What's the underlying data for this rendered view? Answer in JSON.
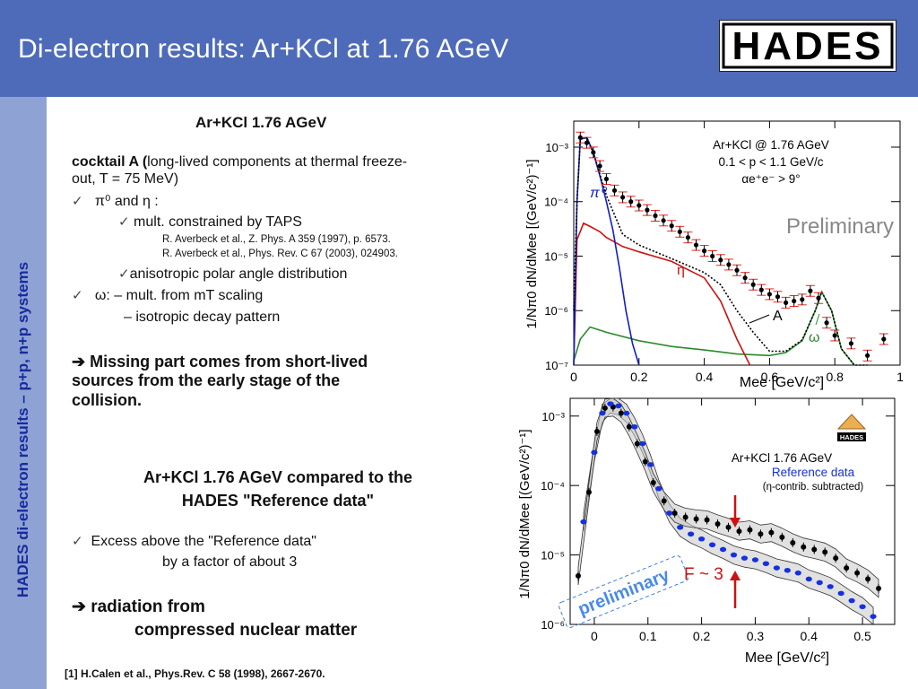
{
  "header": {
    "title": "Di-electron results: Ar+KCl at 1.76 AGeV",
    "logo_text": "HADES",
    "logo_colors": {
      "bg": "#ffffff",
      "fg": "#000000"
    }
  },
  "sidebar": {
    "text": "HADES di-electron results – p+p, n+p systems"
  },
  "left": {
    "section1_title": "Ar+KCl 1.76 AGeV",
    "cocktail_bold": "cocktail A (",
    "cocktail_rest": "long-lived components at thermal freeze-",
    "cocktail_line2": "out, T = 75 MeV)",
    "item_pi_eta": "π⁰ and η :",
    "sub_taps": "mult. constrained by TAPS",
    "ref1": "R. Averbeck  et  al., Z. Phys. A 359 (1997), p. 6573.",
    "ref2": "R. Averbeck  et  al., Phys. Rev. C 67 (2003), 024903.",
    "sub_aniso": "anisotropic polar angle distribution",
    "item_omega": "ω:  – mult. from mT scaling",
    "omega_line2": "– isotropic decay pattern",
    "missing_line1": "➔ Missing part comes from short-lived",
    "missing_line2": "sources from the early stage of the",
    "missing_line3": "collision.",
    "section2_title_l1": "Ar+KCl 1.76 AGeV compared to the",
    "section2_title_l2": "HADES \"Reference data\"",
    "excess_l1": "Excess above the \"Reference data\"",
    "excess_l2": "by a factor of about 3",
    "radiation_l1": "➔ radiation from",
    "radiation_l2": "compressed nuclear matter",
    "footnote": "[1] H.Calen et al., Phys.Rev. C 58 (1998), 2667-2670."
  },
  "chart_data": [
    {
      "type": "line",
      "title": "Ar+KCl @ 1.76 AGeV",
      "subtitle_lines": [
        "0.1 < p < 1.1 GeV/c",
        "αe⁺e⁻ > 9°"
      ],
      "xlabel": "Mee [GeV/c²]",
      "ylabel": "1/Nπ0 dN/dMee  [(GeV/c²)⁻¹]",
      "x_ticks": [
        "0",
        "0.2",
        "0.4",
        "0.6",
        "0.8",
        "1"
      ],
      "y_ticks": [
        "10⁻⁷",
        "10⁻⁶",
        "10⁻⁵",
        "10⁻⁴",
        "10⁻³"
      ],
      "xlim": [
        0,
        1.0
      ],
      "ylog": true,
      "ylim": [
        1e-07,
        0.003
      ],
      "watermark": "Preliminary",
      "labels": {
        "pi0": "π⁰",
        "eta": "η",
        "A": "A",
        "omega": "ω"
      },
      "colors": {
        "pi0": "#1020c0",
        "eta": "#cc1111",
        "omega": "#2a8a2a",
        "data": "#000000",
        "err": "#ee2222"
      },
      "series": [
        {
          "name": "data",
          "x": [
            0.02,
            0.04,
            0.06,
            0.08,
            0.1,
            0.125,
            0.15,
            0.175,
            0.2,
            0.225,
            0.25,
            0.275,
            0.3,
            0.325,
            0.35,
            0.375,
            0.4,
            0.425,
            0.45,
            0.475,
            0.5,
            0.525,
            0.55,
            0.575,
            0.6,
            0.625,
            0.65,
            0.675,
            0.7,
            0.725,
            0.75,
            0.775,
            0.8,
            0.85,
            0.9,
            0.95
          ],
          "y": [
            0.0015,
            0.0012,
            0.0008,
            0.00045,
            0.00026,
            0.00016,
            0.00012,
            0.0001,
            8.5e-05,
            7e-05,
            5.5e-05,
            4.5e-05,
            3.6e-05,
            2.8e-05,
            2.2e-05,
            1.6e-05,
            1.25e-05,
            1e-05,
            8.5e-06,
            7e-06,
            5.5e-06,
            4e-06,
            3e-06,
            2.4e-06,
            2e-06,
            1.8e-06,
            1.4e-06,
            1.5e-06,
            1.6e-06,
            2.3e-06,
            1.7e-06,
            6e-07,
            3.5e-07,
            2.5e-07,
            1.5e-07,
            3e-07
          ]
        },
        {
          "name": "π⁰",
          "x": [
            0,
            0.01,
            0.02,
            0.04,
            0.06,
            0.08,
            0.1,
            0.12,
            0.14,
            0.16,
            0.18,
            0.2
          ],
          "y": [
            1e-07,
            0.0001,
            0.0014,
            0.0015,
            0.0008,
            0.0003,
            0.0001,
            3e-05,
            6e-06,
            1e-06,
            2.5e-07,
            1e-07
          ]
        },
        {
          "name": "η",
          "x": [
            0,
            0.01,
            0.03,
            0.05,
            0.08,
            0.1,
            0.15,
            0.2,
            0.3,
            0.4,
            0.45,
            0.5,
            0.54
          ],
          "y": [
            1e-07,
            2e-05,
            4e-05,
            3.5e-05,
            2.8e-05,
            2.2e-05,
            1.5e-05,
            1.2e-05,
            8e-06,
            4e-06,
            1.5e-06,
            3e-07,
            1e-07
          ]
        },
        {
          "name": "ω",
          "x": [
            0,
            0.02,
            0.05,
            0.1,
            0.2,
            0.3,
            0.4,
            0.5,
            0.6,
            0.65,
            0.7,
            0.74,
            0.76,
            0.79,
            0.82,
            0.86
          ],
          "y": [
            1.2e-07,
            3e-07,
            5e-07,
            4e-07,
            2.8e-07,
            2.2e-07,
            1.9e-07,
            1.6e-07,
            1.5e-07,
            1.7e-07,
            2.8e-07,
            1e-06,
            2.2e-06,
            1e-06,
            2e-07,
            1e-07
          ]
        },
        {
          "name": "A",
          "x": [
            0,
            0.01,
            0.02,
            0.04,
            0.06,
            0.08,
            0.1,
            0.15,
            0.2,
            0.3,
            0.4,
            0.45,
            0.5,
            0.55,
            0.6,
            0.65,
            0.7,
            0.74,
            0.76,
            0.79,
            0.82,
            0.86,
            0.9
          ],
          "y": [
            1e-06,
            0.0001,
            0.0014,
            0.0015,
            0.0008,
            0.00032,
            0.00013,
            2.5e-05,
            1.6e-05,
            9e-06,
            5e-06,
            3e-06,
            1e-06,
            4e-07,
            1.8e-07,
            1.8e-07,
            2.9e-07,
            1e-06,
            2.2e-06,
            1e-06,
            2e-07,
            1e-07,
            1e-07
          ]
        }
      ]
    },
    {
      "type": "line",
      "title": "Ar+KCl 1.76 AGeV",
      "legend": [
        "Reference data",
        "(η-contrib. subtracted)"
      ],
      "xlabel": "Mee [GeV/c²]",
      "ylabel": "1/Nπ0 dN/dMee  [(GeV/c²)⁻¹]",
      "x_ticks": [
        "0",
        "0.1",
        "0.2",
        "0.3",
        "0.4",
        "0.5"
      ],
      "y_ticks": [
        "10⁻⁶",
        "10⁻⁵",
        "10⁻⁴",
        "10⁻³"
      ],
      "xlim": [
        -0.045,
        0.56
      ],
      "ylog": true,
      "ylim": [
        1e-06,
        0.0018
      ],
      "stamp": "preliminary",
      "annotation": "F ~ 3",
      "colors": {
        "arkcl": "#000000",
        "ref": "#1530e0",
        "arrow": "#cc1111",
        "band": "#c8c8c8"
      },
      "series": [
        {
          "name": "Ar+KCl 1.76 AGeV",
          "x": [
            -0.03,
            -0.01,
            0.005,
            0.02,
            0.035,
            0.05,
            0.065,
            0.08,
            0.095,
            0.11,
            0.13,
            0.15,
            0.17,
            0.19,
            0.21,
            0.23,
            0.25,
            0.27,
            0.29,
            0.31,
            0.33,
            0.35,
            0.37,
            0.39,
            0.41,
            0.43,
            0.45,
            0.47,
            0.49,
            0.51,
            0.53
          ],
          "y": [
            5e-06,
            8e-05,
            0.0006,
            0.0013,
            0.00135,
            0.0011,
            0.0007,
            0.0004,
            0.00022,
            0.00011,
            6e-05,
            4e-05,
            3.5e-05,
            3.3e-05,
            3.2e-05,
            2.8e-05,
            2.5e-05,
            2.2e-05,
            2.3e-05,
            2e-05,
            2.1e-05,
            1.8e-05,
            1.5e-05,
            1.3e-05,
            1.2e-05,
            1.1e-05,
            9e-06,
            6.5e-06,
            5.5e-06,
            4.5e-06,
            3.3e-06
          ]
        },
        {
          "name": "Reference data",
          "x": [
            -0.02,
            0.0,
            0.015,
            0.03,
            0.045,
            0.06,
            0.075,
            0.09,
            0.105,
            0.12,
            0.14,
            0.16,
            0.18,
            0.2,
            0.22,
            0.24,
            0.26,
            0.28,
            0.3,
            0.32,
            0.34,
            0.36,
            0.38,
            0.4,
            0.42,
            0.44,
            0.46,
            0.48,
            0.5,
            0.52
          ],
          "y": [
            3e-05,
            0.0003,
            0.0011,
            0.0015,
            0.0014,
            0.0011,
            0.0007,
            0.0004,
            0.0002,
            9e-05,
            4e-05,
            2.5e-05,
            2e-05,
            1.7e-05,
            1.4e-05,
            1.2e-05,
            1e-05,
            9e-06,
            8.5e-06,
            7.5e-06,
            6.5e-06,
            6e-06,
            5.5e-06,
            4.5e-06,
            4e-06,
            3.5e-06,
            2.8e-06,
            2.2e-06,
            1.8e-06,
            1.3e-06
          ]
        }
      ]
    }
  ]
}
